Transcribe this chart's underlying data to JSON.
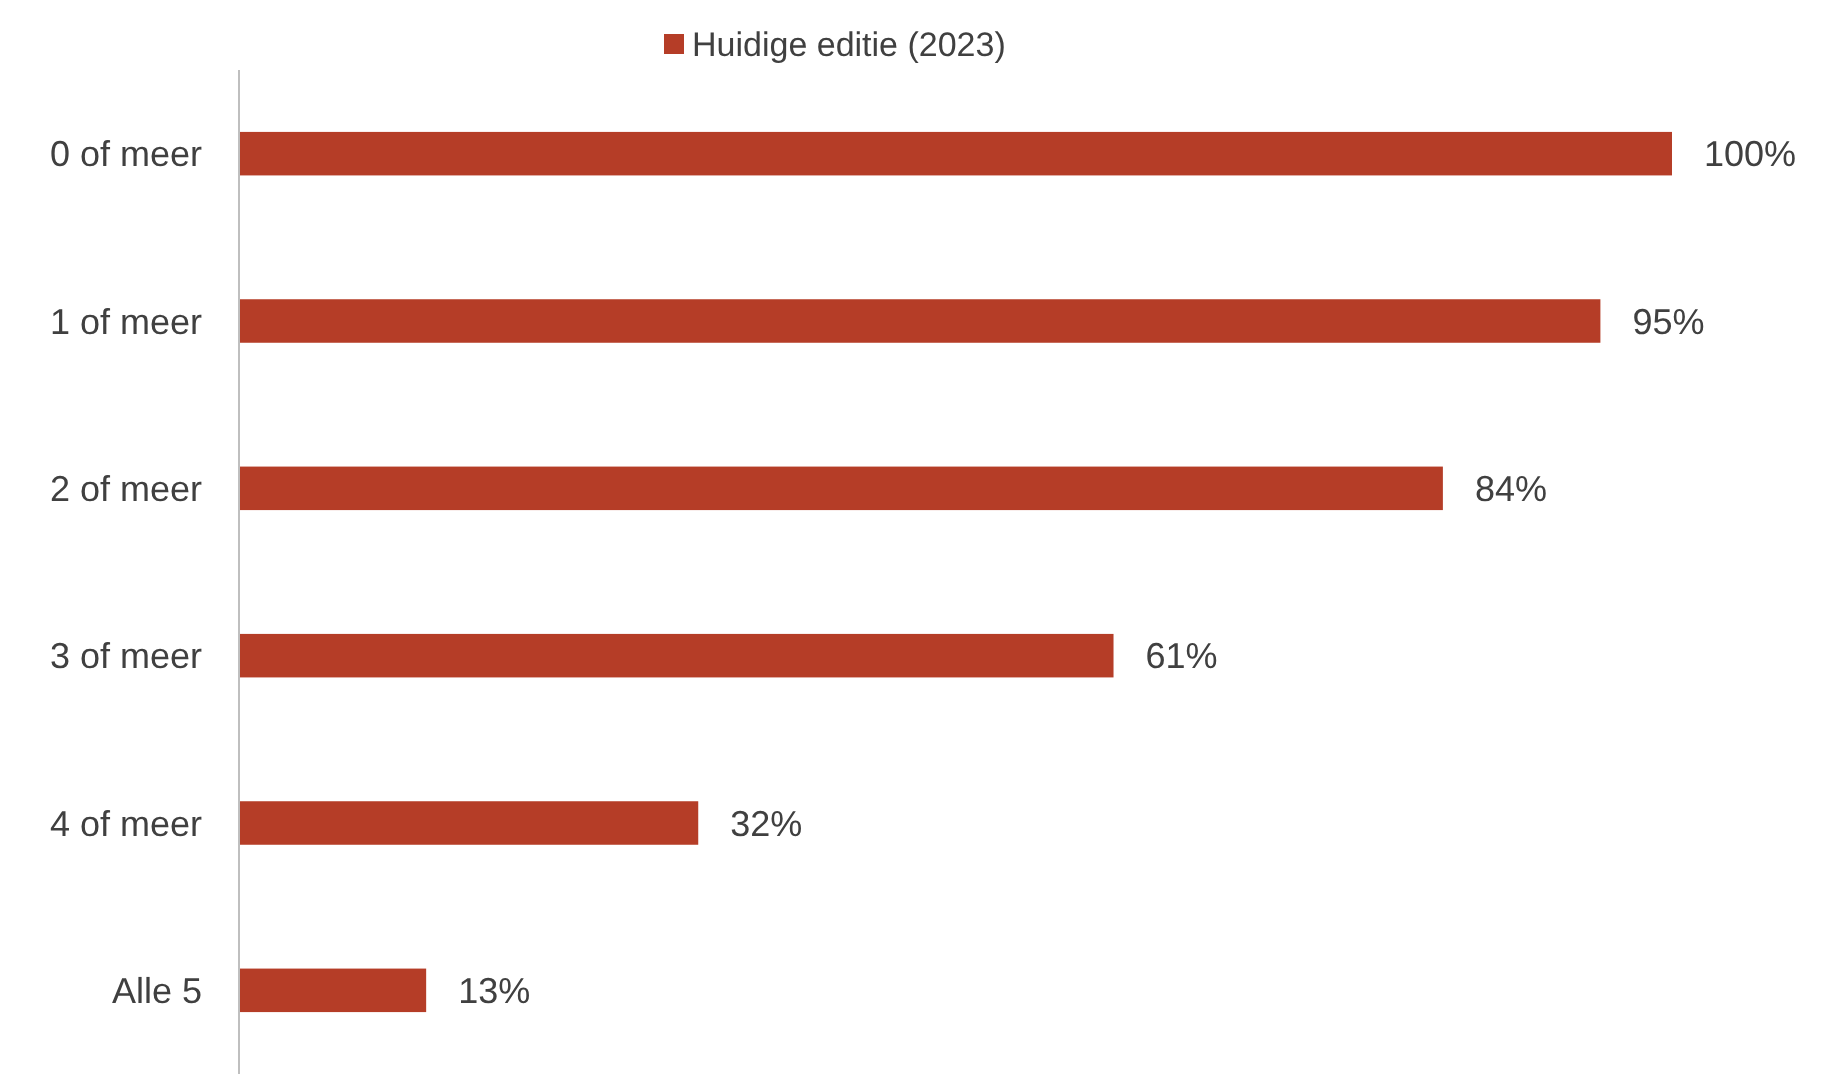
{
  "chart_data": {
    "type": "bar",
    "orientation": "horizontal",
    "categories": [
      "0 of meer",
      "1 of meer",
      "2 of meer",
      "3 of meer",
      "4 of meer",
      "Alle 5"
    ],
    "series": [
      {
        "name": "Huidige editie (2023)",
        "color": "#b53d27",
        "values": [
          100,
          95,
          84,
          61,
          32,
          13
        ],
        "value_labels": [
          "100%",
          "95%",
          "84%",
          "61%",
          "32%",
          "13%"
        ]
      }
    ],
    "legend": "top"
  }
}
